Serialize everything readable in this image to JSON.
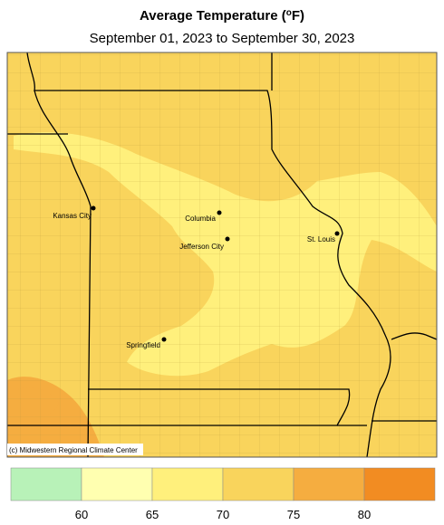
{
  "title": {
    "text": "Average Temperature (",
    "sup": "o",
    "end": "F)"
  },
  "subtitle": "September 01, 2023 to September 30, 2023",
  "cities": [
    "Kansas City",
    "Columbia",
    "Jefferson City",
    "St. Louis",
    "Springfield"
  ],
  "credit": "(c) Midwestern Regional Climate Center",
  "legend": {
    "colors": [
      "#b8f2b8",
      "#ffffb0",
      "#fff07c",
      "#f9d45c",
      "#f5ad40",
      "#f28c22"
    ],
    "ticks": [
      60,
      65,
      70,
      75,
      80
    ]
  }
}
